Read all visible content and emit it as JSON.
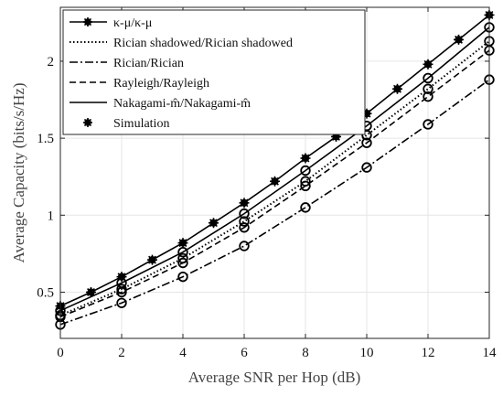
{
  "chart_data": {
    "type": "line",
    "title": "",
    "xlabel": "Average SNR per Hop (dB)",
    "ylabel": "Average Capacity (bits/s/Hz)",
    "xlim": [
      0,
      14
    ],
    "ylim": [
      0.2,
      2.35
    ],
    "xticks": [
      0,
      2,
      4,
      6,
      8,
      10,
      12,
      14
    ],
    "xtick_labels": [
      "0",
      "2",
      "4",
      "6",
      "8",
      "10",
      "12",
      "14"
    ],
    "yticks": [
      0.5,
      1,
      1.5,
      2
    ],
    "ytick_labels": [
      "0.5",
      "1",
      "1.5",
      "2"
    ],
    "grid": true,
    "legend_position": "top-left",
    "series": [
      {
        "name": "κ-μ/κ-μ",
        "line_style": "solid",
        "marker": "asterisk",
        "x": [
          0,
          1,
          2,
          3,
          4,
          5,
          6,
          7,
          8,
          9,
          10,
          11,
          12,
          13,
          14
        ],
        "y": [
          0.41,
          0.5,
          0.6,
          0.71,
          0.82,
          0.95,
          1.08,
          1.22,
          1.37,
          1.51,
          1.66,
          1.82,
          1.98,
          2.14,
          2.3
        ]
      },
      {
        "name": "Rician shadowed/Rician shadowed",
        "line_style": "dotted",
        "marker": "circle",
        "x": [
          0,
          2,
          4,
          6,
          8,
          10,
          12,
          14
        ],
        "y": [
          0.35,
          0.52,
          0.72,
          0.96,
          1.22,
          1.52,
          1.82,
          2.13
        ]
      },
      {
        "name": "Rician/Rician",
        "line_style": "dashdot",
        "marker": "circle",
        "x": [
          0,
          2,
          4,
          6,
          8,
          10,
          12,
          14
        ],
        "y": [
          0.29,
          0.43,
          0.6,
          0.8,
          1.05,
          1.31,
          1.59,
          1.88
        ]
      },
      {
        "name": "Rayleigh/Rayleigh",
        "line_style": "dashed",
        "marker": "circle",
        "x": [
          0,
          2,
          4,
          6,
          8,
          10,
          12,
          14
        ],
        "y": [
          0.34,
          0.5,
          0.69,
          0.92,
          1.19,
          1.47,
          1.77,
          2.07
        ]
      },
      {
        "name": "Nakagami-m̂/Nakagami-m̂",
        "line_style": "solid",
        "marker": "circle",
        "x": [
          0,
          2,
          4,
          6,
          8,
          10,
          12,
          14
        ],
        "y": [
          0.38,
          0.56,
          0.76,
          1.01,
          1.29,
          1.58,
          1.89,
          2.22
        ]
      }
    ],
    "legend": [
      {
        "label": "κ-μ/κ-μ",
        "line_style": "solid",
        "marker": "asterisk"
      },
      {
        "label": "Rician shadowed/Rician shadowed",
        "line_style": "dotted",
        "marker": "none"
      },
      {
        "label": "Rician/Rician",
        "line_style": "dashdot",
        "marker": "none"
      },
      {
        "label": "Rayleigh/Rayleigh",
        "line_style": "dashed",
        "marker": "none"
      },
      {
        "label": "Nakagami-m̂/Nakagami-m̂",
        "line_style": "solid",
        "marker": "none"
      },
      {
        "label": "Simulation",
        "line_style": "none",
        "marker": "asterisk"
      }
    ],
    "colors": {
      "line": "#000000",
      "grid": "#e6e6e6",
      "axis": "#262626"
    }
  }
}
